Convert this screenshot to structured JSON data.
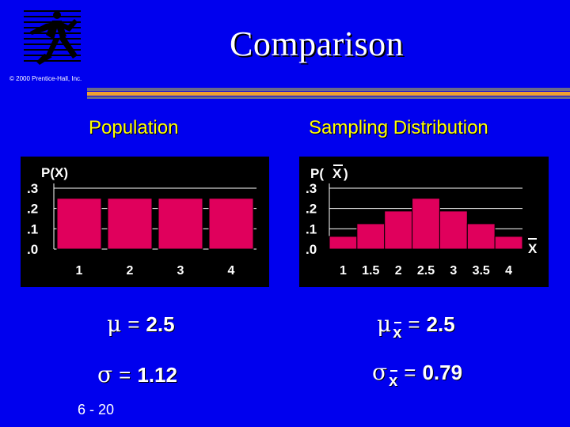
{
  "slide": {
    "title": "Comparison",
    "copyright": "© 2000 Prentice-Hall, Inc.",
    "page": "6 - 20",
    "logo_icon": "running-figure-icon"
  },
  "colors": {
    "background": "#0000ee",
    "bar_fill": "#e0005c",
    "accent_stripe": "#f0a030",
    "heading": "#ffff00"
  },
  "population": {
    "heading": "Population",
    "mu_value": "2.5",
    "sigma_value": "1.12"
  },
  "sampling": {
    "heading": "Sampling Distribution",
    "mu_value": "2.5",
    "sigma_value": "0.79",
    "subscript": "x"
  },
  "chart_data": [
    {
      "type": "bar",
      "ylabel": "P(X)",
      "categories": [
        "1",
        "2",
        "3",
        "4"
      ],
      "values": [
        0.25,
        0.25,
        0.25,
        0.25
      ],
      "y_ticks": [
        ".0",
        ".1",
        ".2",
        ".3"
      ],
      "ylim": [
        0,
        0.3
      ],
      "grid": true
    },
    {
      "type": "bar",
      "ylabel_prefix": "P(",
      "ylabel_var": "X",
      "ylabel_suffix": ")",
      "xlabel": "X",
      "categories": [
        "1",
        "1.5",
        "2",
        "2.5",
        "3",
        "3.5",
        "4"
      ],
      "values": [
        0.0625,
        0.125,
        0.1875,
        0.25,
        0.1875,
        0.125,
        0.0625
      ],
      "y_ticks": [
        ".0",
        ".1",
        ".2",
        ".3"
      ],
      "ylim": [
        0,
        0.3
      ],
      "grid": true
    }
  ]
}
